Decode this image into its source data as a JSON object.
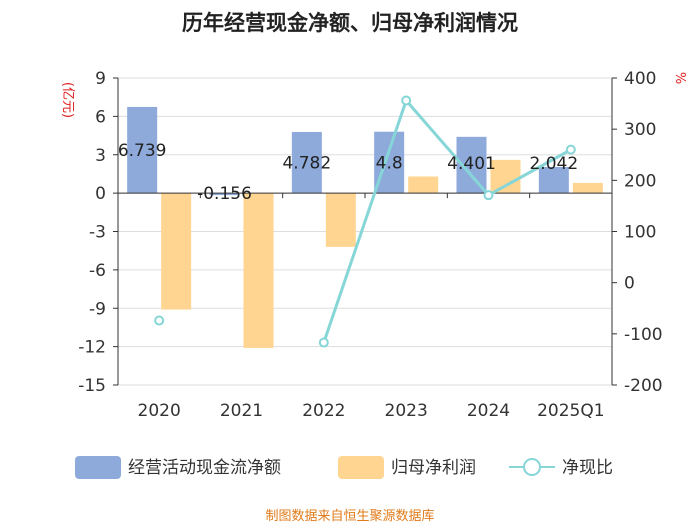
{
  "chart_data": {
    "type": "bar",
    "title": "历年经营现金净额、归母净利润情况",
    "categories": [
      "2020",
      "2021",
      "2022",
      "2023",
      "2024",
      "2025Q1"
    ],
    "y_left": {
      "unit": "(亿元)",
      "min": -15,
      "max": 9,
      "ticks": [
        9,
        6,
        3,
        0,
        -3,
        -6,
        -9,
        -12,
        -15
      ]
    },
    "y_right": {
      "unit": "%",
      "min": -200,
      "max": 400,
      "ticks": [
        400,
        300,
        200,
        100,
        0,
        -100,
        -200
      ]
    },
    "series": [
      {
        "name": "经营活动现金流净额",
        "type": "bar",
        "axis": "left",
        "color": "#8eaadb",
        "values": [
          6.739,
          -0.156,
          4.782,
          4.8,
          4.401,
          2.042
        ],
        "labels": [
          "6.739",
          "-0.156",
          "4.782",
          "4.8",
          "4.401",
          "2.042"
        ]
      },
      {
        "name": "归母净利润",
        "type": "bar",
        "axis": "left",
        "color": "#ffd591",
        "values": [
          -9.1,
          -12.1,
          -4.2,
          1.3,
          2.6,
          0.8
        ]
      },
      {
        "name": "净现比",
        "type": "line",
        "axis": "right",
        "color": "#86d6d8",
        "values": [
          -74,
          null,
          -117,
          356,
          171,
          260
        ]
      }
    ],
    "legend": [
      "经营活动现金流净额",
      "归母净利润",
      "净现比"
    ],
    "footer": "制图数据来自恒生聚源数据库"
  }
}
